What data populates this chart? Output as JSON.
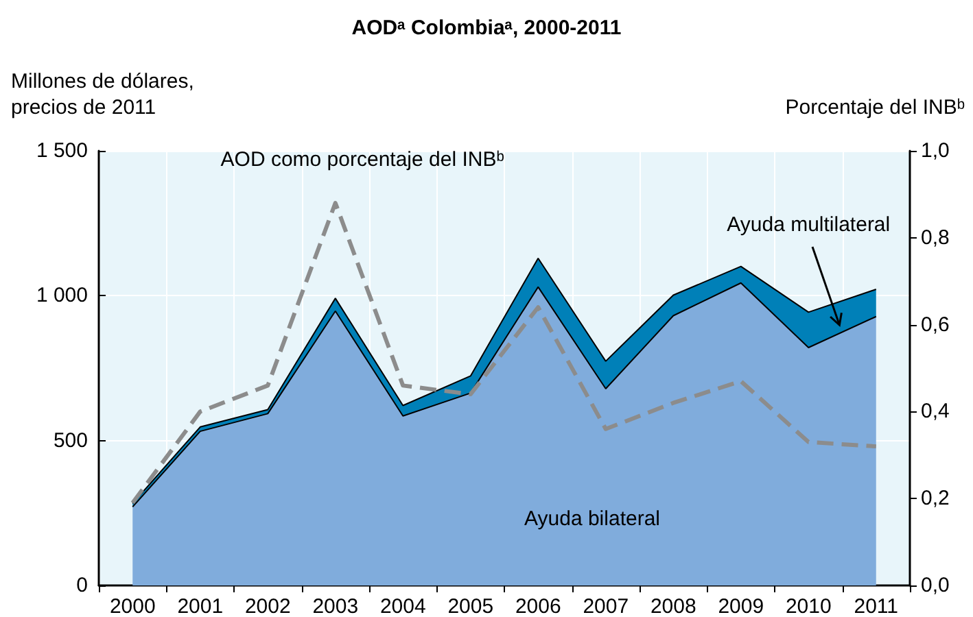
{
  "chart_data": {
    "type": "area",
    "title": "AODᵃ Colombiaᵃ, 2000-2011",
    "ylabel": "Millones de dólares,\nprecios de 2011",
    "y2label": "Porcentaje del INBᵇ",
    "categories": [
      "2000",
      "2001",
      "2002",
      "2003",
      "2004",
      "2005",
      "2006",
      "2007",
      "2008",
      "2009",
      "2010",
      "2011"
    ],
    "stacked": true,
    "series": [
      {
        "name": "Ayuda bilateral",
        "color": "#80acdc",
        "values": [
          271,
          532,
          593,
          947,
          585,
          664,
          1030,
          679,
          931,
          1044,
          821,
          928
        ]
      },
      {
        "name": "Ayuda multilateral",
        "color": "#0080b8",
        "values": [
          12,
          15,
          14,
          44,
          36,
          59,
          99,
          95,
          71,
          57,
          122,
          94
        ]
      },
      {
        "name": "AOD como porcentaje del INBᵇ",
        "type": "line",
        "axis": "y2",
        "color": "#8c8c8c",
        "line_style": "dashed",
        "values": [
          0.19,
          0.4,
          0.46,
          0.88,
          0.46,
          0.44,
          0.64,
          0.36,
          0.42,
          0.47,
          0.33,
          0.32
        ]
      }
    ],
    "ylim": [
      0,
      1500
    ],
    "yticks": [
      0,
      500,
      {
        "value": 1000,
        "label": "1 000"
      },
      {
        "value": 1500,
        "label": "1 500"
      }
    ],
    "y2lim": [
      0,
      1
    ],
    "y2ticks": [
      {
        "value": 0,
        "label": "0,0"
      },
      {
        "value": 0.2,
        "label": "0,2"
      },
      {
        "value": 0.4,
        "label": "0,4"
      },
      {
        "value": 0.6,
        "label": "0,6"
      },
      {
        "value": 0.8,
        "label": "0,8"
      },
      {
        "value": 1,
        "label": "1,0"
      }
    ],
    "grid": true,
    "legend": false,
    "marker": "none"
  }
}
